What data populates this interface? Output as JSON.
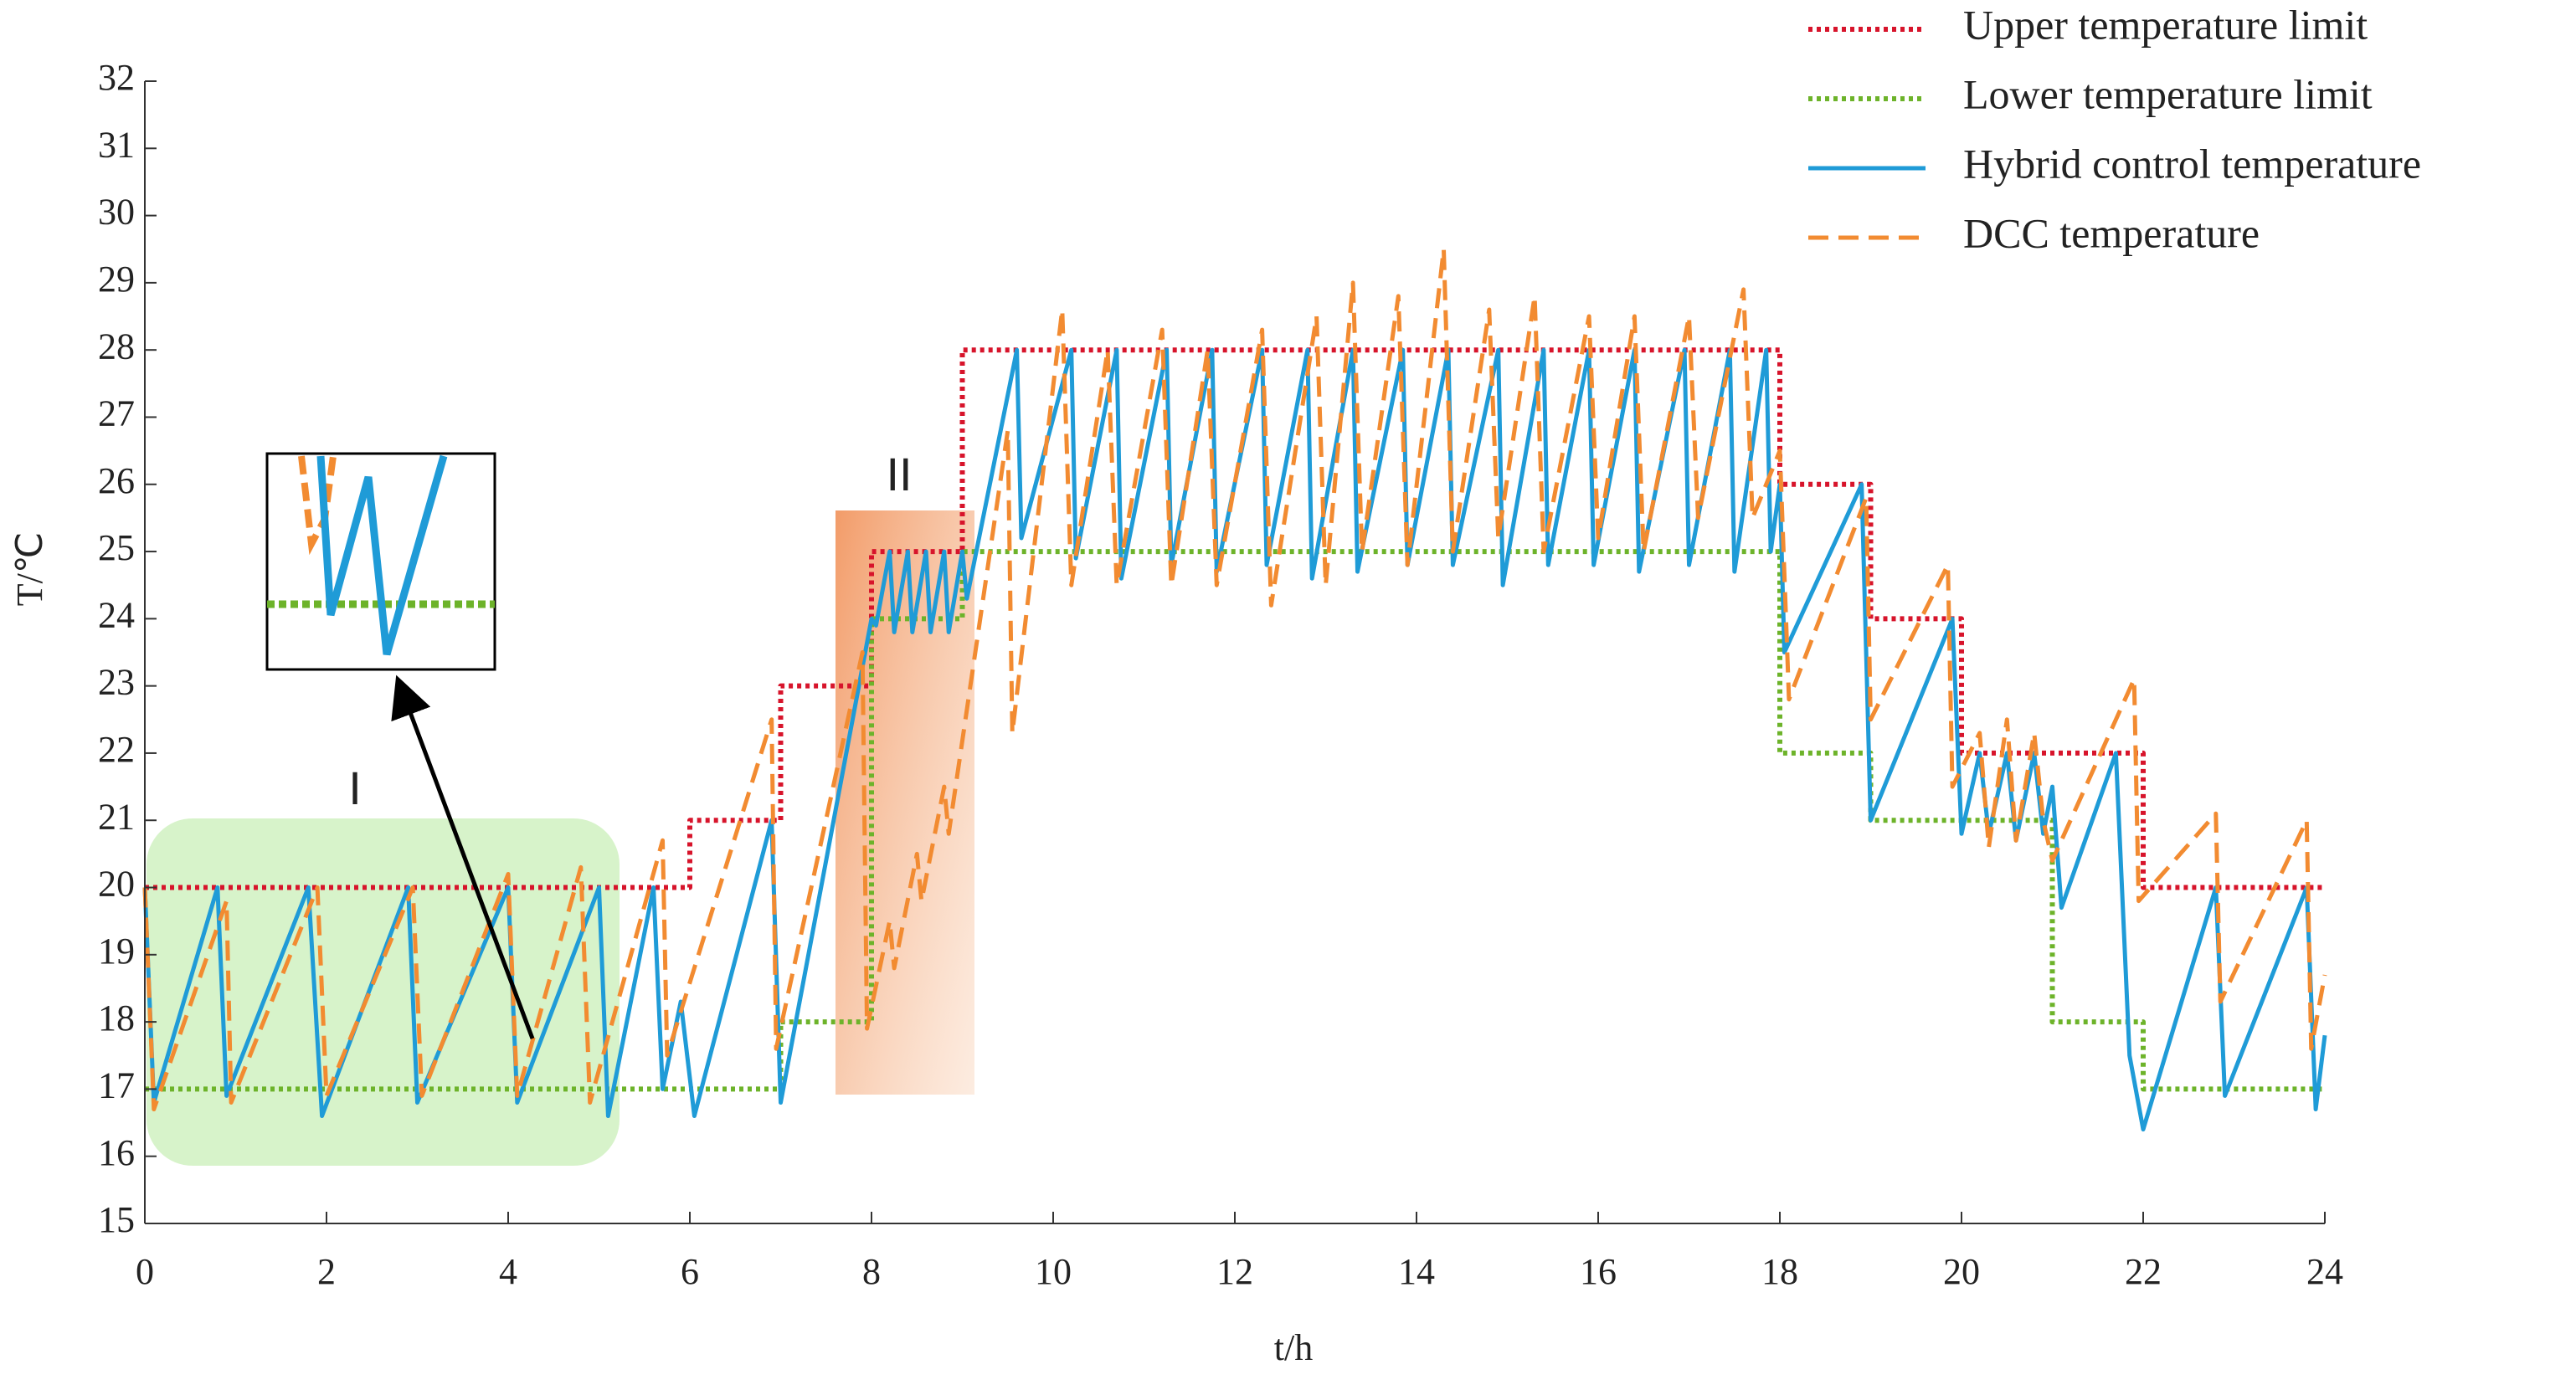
{
  "chart_data": {
    "type": "line",
    "xlabel": "t/h",
    "ylabel": "T/℃",
    "annotations": [
      "I",
      "II"
    ],
    "xlim": [
      0,
      24
    ],
    "xticks": [
      0,
      2,
      4,
      6,
      8,
      10,
      12,
      14,
      16,
      18,
      20,
      22,
      24
    ],
    "ylim": [
      15,
      32
    ],
    "yticks": [
      15,
      16,
      17,
      18,
      19,
      20,
      21,
      22,
      23,
      24,
      25,
      26,
      27,
      28,
      29,
      30,
      31,
      32
    ],
    "legend": "upper right",
    "series": [
      {
        "name": "Upper temperature limit",
        "color": "#d7142b",
        "style": "dotted",
        "x": [
          0,
          6,
          6,
          7,
          7,
          8,
          8,
          9,
          9,
          18,
          18,
          19,
          19,
          20,
          20,
          22,
          22,
          24
        ],
        "values": [
          20,
          20,
          21,
          21,
          23,
          23,
          25,
          25,
          28,
          28,
          26,
          26,
          24,
          24,
          22,
          22,
          20,
          20
        ]
      },
      {
        "name": "Lower temperature limit",
        "color": "#6db32a",
        "style": "dotted",
        "x": [
          0,
          7,
          7,
          8,
          8,
          9,
          9,
          18,
          18,
          19,
          19,
          21,
          21,
          22,
          22,
          24
        ],
        "values": [
          17,
          17,
          18,
          18,
          24,
          24,
          25,
          25,
          22,
          22,
          21,
          21,
          18,
          18,
          17,
          17
        ]
      },
      {
        "name": "Hybrid control temperature",
        "color": "#1f9bd7",
        "style": "solid",
        "x": [
          0,
          0.1,
          0.8,
          0.9,
          1.8,
          1.95,
          2.9,
          3.0,
          4.0,
          4.1,
          5.0,
          5.1,
          5.6,
          5.7,
          5.9,
          6.05,
          6.9,
          7.0,
          8.0,
          8.05,
          8.2,
          8.25,
          8.4,
          8.45,
          8.6,
          8.65,
          8.8,
          8.85,
          9.0,
          9.05,
          9.6,
          9.65,
          10.2,
          10.25,
          10.7,
          10.75,
          11.25,
          11.3,
          11.75,
          11.8,
          12.3,
          12.35,
          12.8,
          12.85,
          13.3,
          13.35,
          13.85,
          13.9,
          14.35,
          14.4,
          14.9,
          14.95,
          15.4,
          15.45,
          15.9,
          15.95,
          16.4,
          16.45,
          16.95,
          17.0,
          17.45,
          17.5,
          17.85,
          17.9,
          18.0,
          18.05,
          18.9,
          19.0,
          19.9,
          20.0,
          20.2,
          20.3,
          20.5,
          20.6,
          20.8,
          20.9,
          21.0,
          21.1,
          21.7,
          21.85,
          22.0,
          22.8,
          22.9,
          23.8,
          23.9,
          24.0
        ],
        "values": [
          20,
          16.8,
          20,
          16.9,
          20,
          16.6,
          20,
          16.8,
          20,
          16.8,
          20,
          16.6,
          20,
          17,
          18.3,
          16.6,
          21,
          16.8,
          24,
          23.9,
          25,
          23.8,
          25,
          23.8,
          25,
          23.8,
          25,
          23.8,
          25,
          24.3,
          28,
          25.2,
          28,
          24.9,
          28,
          24.6,
          28,
          24.8,
          28,
          24.7,
          28,
          24.8,
          28,
          24.6,
          28,
          24.7,
          28,
          24.8,
          28,
          24.8,
          28,
          24.5,
          28,
          24.8,
          28,
          24.8,
          28,
          24.7,
          28,
          24.8,
          28,
          24.7,
          28,
          25,
          26,
          23.5,
          26,
          21,
          24,
          20.8,
          22,
          20.8,
          22,
          20.7,
          22,
          20.8,
          21.5,
          19.7,
          22,
          17.5,
          16.4,
          20,
          16.9,
          20,
          16.7,
          17.8
        ]
      },
      {
        "name": "DCC temperature",
        "color": "#f28b31",
        "style": "dashed",
        "x": [
          0,
          0.1,
          0.9,
          0.95,
          1.9,
          2.0,
          2.95,
          3.05,
          4.0,
          4.1,
          4.8,
          4.9,
          5.7,
          5.75,
          6.9,
          6.95,
          7.9,
          7.95,
          8.2,
          8.25,
          8.5,
          8.55,
          8.8,
          8.85,
          9.5,
          9.55,
          10.1,
          10.2,
          10.6,
          10.7,
          11.2,
          11.3,
          11.7,
          11.8,
          12.3,
          12.4,
          12.9,
          13.0,
          13.3,
          13.4,
          13.8,
          13.9,
          14.3,
          14.4,
          14.8,
          14.9,
          15.3,
          15.4,
          15.9,
          16.0,
          16.4,
          16.5,
          17.0,
          17.1,
          17.6,
          17.7,
          18.0,
          18.1,
          18.95,
          19.0,
          19.85,
          19.9,
          20.2,
          20.3,
          20.5,
          20.6,
          20.8,
          20.9,
          21.0,
          21.9,
          21.95,
          22.8,
          22.85,
          23.8,
          23.85,
          24.0
        ],
        "values": [
          20,
          16.7,
          19.8,
          16.8,
          20,
          16.9,
          20,
          16.9,
          20.2,
          16.9,
          20.3,
          16.8,
          20.7,
          17.5,
          22.5,
          17.6,
          23.5,
          17.9,
          19.5,
          18.8,
          20.5,
          19.8,
          21.5,
          20.8,
          26.8,
          22.3,
          28.6,
          24.5,
          28,
          24.5,
          28.3,
          24.5,
          28,
          24.5,
          28.3,
          24.2,
          28.5,
          24.5,
          29,
          25,
          28.8,
          24.8,
          29.5,
          25,
          28.6,
          25.2,
          28.8,
          25,
          28.5,
          25.2,
          28.5,
          25,
          28.5,
          25.5,
          28.9,
          25.5,
          26.5,
          22.8,
          25.8,
          22.5,
          24.8,
          21.5,
          22.3,
          20.6,
          22.5,
          20.7,
          22.3,
          21,
          20.4,
          23.1,
          19.8,
          21.1,
          18.3,
          21,
          17.6,
          18.7
        ]
      }
    ]
  }
}
